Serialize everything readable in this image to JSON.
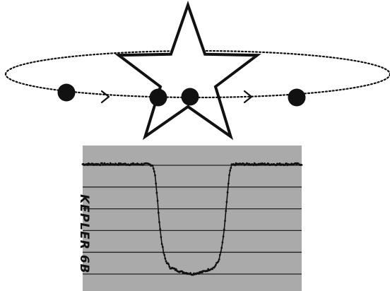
{
  "label": "KEPLER 6B",
  "colors": {
    "ink": "#111111",
    "panel": "#aaaaaa",
    "gridline": "#222222",
    "background": "#ffffff"
  },
  "chart_data": {
    "type": "line",
    "title": "",
    "xlabel": "",
    "ylabel": "",
    "ylim": [
      0,
      5.5
    ],
    "grid": "horizontal",
    "legend": "none",
    "gridlines_y": [
      0,
      1,
      2,
      3,
      4,
      5
    ],
    "series": [
      {
        "x": [
          0,
          0.05,
          0.1,
          0.15,
          0.2,
          0.25,
          0.3,
          0.32,
          0.33,
          0.34,
          0.35,
          0.36,
          0.37,
          0.38,
          0.4,
          0.45,
          0.5,
          0.55,
          0.6,
          0.62,
          0.63,
          0.64,
          0.65,
          0.66,
          0.67,
          0.68,
          0.7,
          0.75,
          0.8,
          0.85,
          0.9,
          0.95,
          1.0
        ],
        "values": [
          5.05,
          5.05,
          5.05,
          5.05,
          5.05,
          5.05,
          5.05,
          5.0,
          4.6,
          3.6,
          2.4,
          1.5,
          0.95,
          0.6,
          0.3,
          0.1,
          0.0,
          0.1,
          0.3,
          0.6,
          0.95,
          1.5,
          2.4,
          3.6,
          4.6,
          5.0,
          5.05,
          5.05,
          5.05,
          5.05,
          5.05,
          5.05,
          5.05
        ]
      }
    ]
  }
}
